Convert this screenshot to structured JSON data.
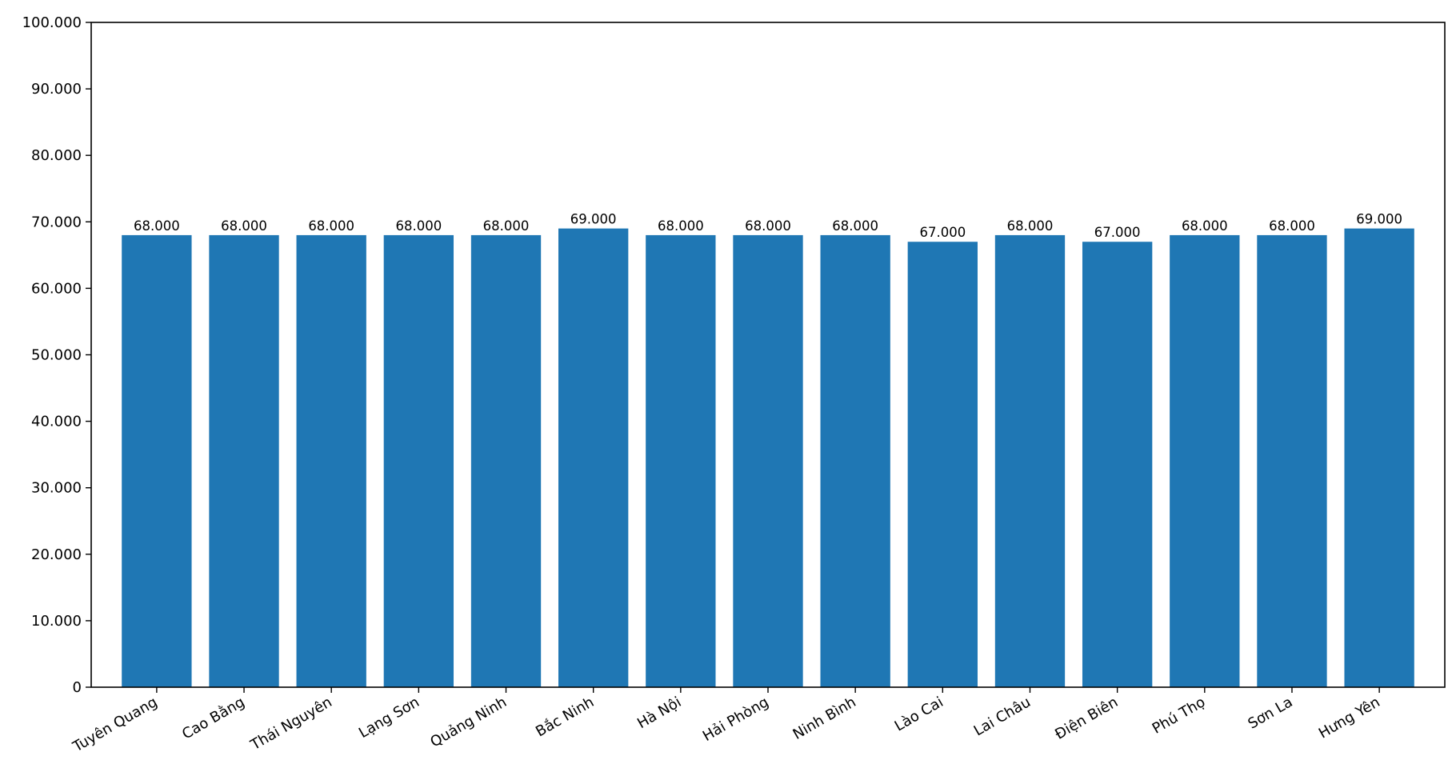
{
  "chart_data": {
    "type": "bar",
    "title": "",
    "xlabel": "",
    "ylabel": "",
    "categories": [
      "Tuyên Quang",
      "Cao Bằng",
      "Thái Nguyên",
      "Lạng Sơn",
      "Quảng Ninh",
      "Bắc Ninh",
      "Hà Nội",
      "Hải Phòng",
      "Ninh Bình",
      "Lào Cai",
      "Lai Châu",
      "Điện Biên",
      "Phú Thọ",
      "Sơn La",
      "Hưng Yên"
    ],
    "values": [
      68000,
      68000,
      68000,
      68000,
      68000,
      69000,
      68000,
      68000,
      68000,
      67000,
      68000,
      67000,
      68000,
      68000,
      69000
    ],
    "value_labels": [
      "68.000",
      "68.000",
      "68.000",
      "68.000",
      "68.000",
      "69.000",
      "68.000",
      "68.000",
      "68.000",
      "67.000",
      "68.000",
      "67.000",
      "68.000",
      "68.000",
      "69.000"
    ],
    "ylim": [
      0,
      100000
    ],
    "yticks": [
      0,
      10000,
      20000,
      30000,
      40000,
      50000,
      60000,
      70000,
      80000,
      90000,
      100000
    ],
    "ytick_labels": [
      "0",
      "10.000",
      "20.000",
      "30.000",
      "40.000",
      "50.000",
      "60.000",
      "70.000",
      "80.000",
      "90.000",
      "100.000"
    ],
    "bar_color": "#1f77b4",
    "grid": false,
    "legend": "none"
  }
}
